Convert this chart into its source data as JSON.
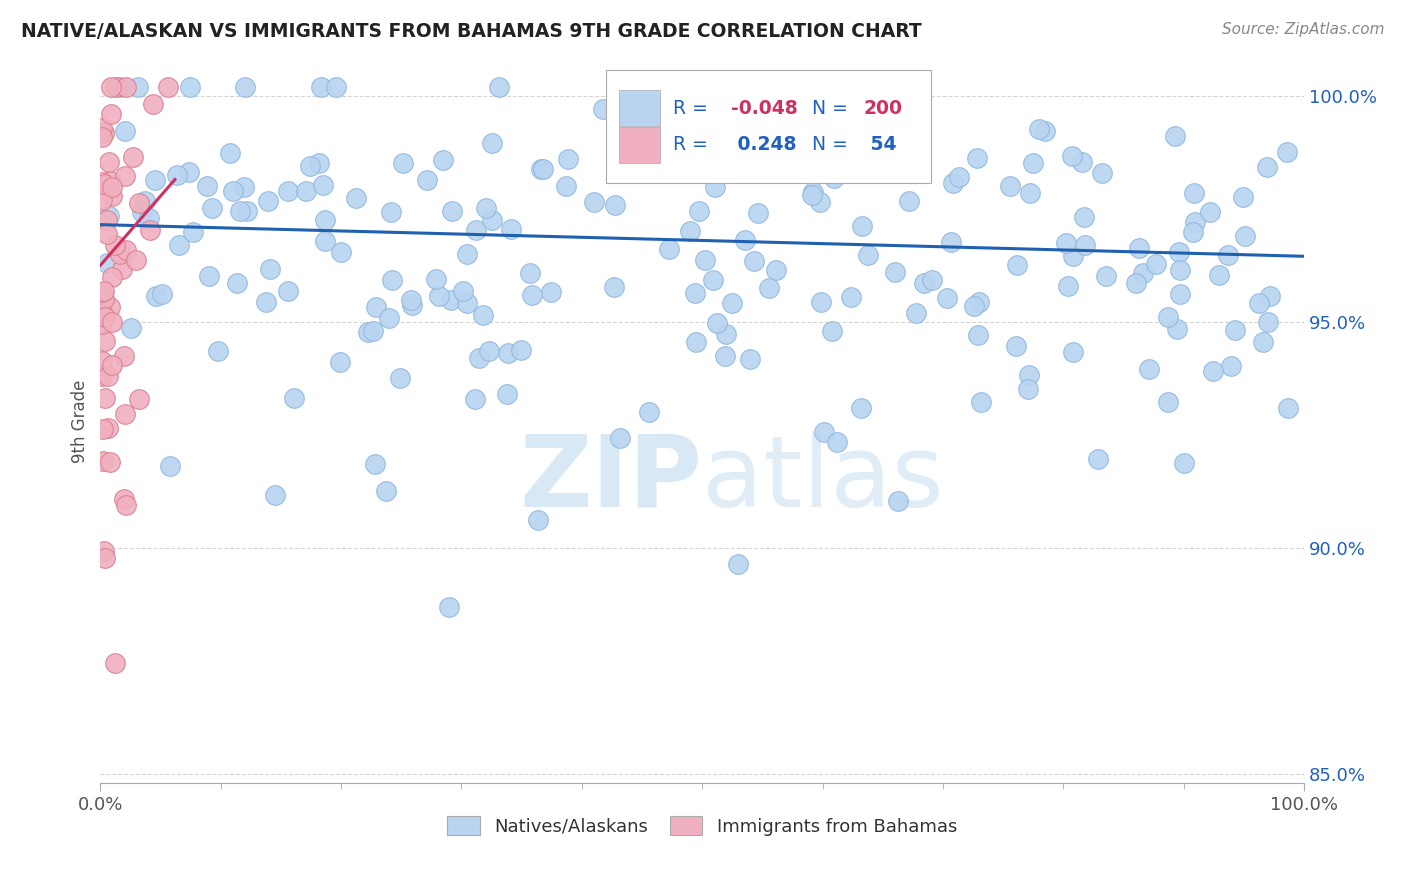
{
  "title": "NATIVE/ALASKAN VS IMMIGRANTS FROM BAHAMAS 9TH GRADE CORRELATION CHART",
  "source_text": "Source: ZipAtlas.com",
  "ylabel": "9th Grade",
  "blue_color": "#b8d4f0",
  "pink_color": "#f0b0c0",
  "blue_line_color": "#2060b0",
  "pink_line_color": "#d03060",
  "legend_text_color": "#2060c0",
  "legend_neg_color": "#d03060",
  "watermark_color": "#c8dff0",
  "grid_color": "#cccccc",
  "tick_color": "#2060c0",
  "xlabel_color": "#555555",
  "ylabel_color": "#555555",
  "title_color": "#222222",
  "source_color": "#888888",
  "blue_seed": 42,
  "pink_seed": 99,
  "n_blue": 200,
  "n_pink": 54,
  "xlim": [
    0.0,
    1.0
  ],
  "ylim": [
    0.848,
    1.008
  ],
  "yticks": [
    0.85,
    0.9,
    0.95,
    1.0
  ],
  "ytick_labels": [
    "85.0%",
    "90.0%",
    "95.0%",
    "100.0%"
  ],
  "blue_trend_start_y": 0.9715,
  "blue_trend_end_y": 0.9645,
  "pink_trend_start_x": 0.0,
  "pink_trend_end_x": 0.062,
  "pink_trend_start_y": 0.9625,
  "pink_trend_end_y": 0.9815
}
